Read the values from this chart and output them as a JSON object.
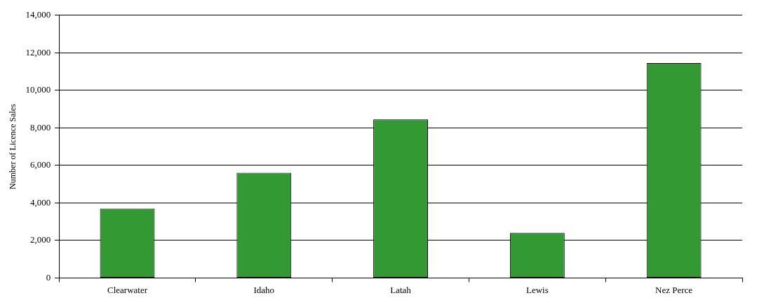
{
  "chart_data": {
    "type": "bar",
    "ylabel": "Number of Licence Sales",
    "categories": [
      "Clearwater",
      "Idaho",
      "Latah",
      "Lewis",
      "Nez Perce"
    ],
    "values": [
      3700,
      5600,
      8450,
      2400,
      11450
    ],
    "color": "#339933",
    "ylim": [
      0,
      14000
    ],
    "yticks": [
      0,
      {
        "value": 2000,
        "label": "2,000"
      },
      {
        "value": 4000,
        "label": "4,000"
      },
      {
        "value": 6000,
        "label": "6,000"
      },
      {
        "value": 8000,
        "label": "8,000"
      },
      {
        "value": 10000,
        "label": "10,000"
      },
      {
        "value": 12000,
        "label": "12,000"
      },
      {
        "value": 14000,
        "label": "14,000"
      }
    ],
    "grid": "y",
    "legend": false
  }
}
